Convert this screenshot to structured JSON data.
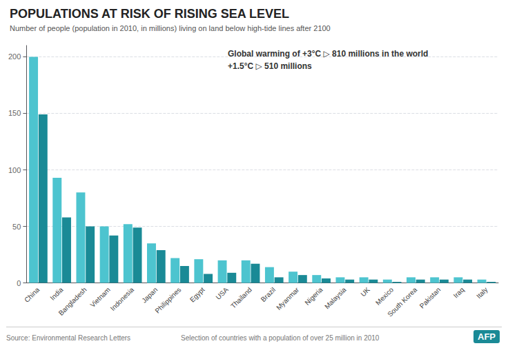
{
  "chart_data": {
    "type": "bar",
    "title": "POPULATIONS AT RISK OF RISING SEA LEVEL",
    "subtitle": "Number of people (population in 2010, in millions) living on land below high-tide lines after 2100",
    "categories": [
      "China",
      "India",
      "Bangladesh",
      "Vietnam",
      "Indonesia",
      "Japan",
      "Philippines",
      "Egypt",
      "USA",
      "Thailand",
      "Brazil",
      "Myanmar",
      "Nigeria",
      "Malaysia",
      "UK",
      "Mexico",
      "South Korea",
      "Pakistan",
      "Iraq",
      "Italy"
    ],
    "series": [
      {
        "name": "+3°C",
        "color": "#4DC4CF",
        "values": [
          200,
          93,
          80,
          50,
          52,
          35,
          22,
          21,
          20,
          20,
          14,
          10,
          7,
          5,
          5,
          3,
          5,
          5,
          5,
          3
        ]
      },
      {
        "name": "+1.5°C",
        "color": "#1A8A96",
        "values": [
          149,
          58,
          50,
          42,
          49,
          29,
          15,
          8,
          9,
          17,
          5,
          7,
          4,
          3,
          3,
          1,
          3,
          3,
          3,
          1
        ]
      }
    ],
    "ylim": [
      0,
      210
    ],
    "yticks": [
      0,
      50,
      100,
      150,
      200
    ],
    "grid": true,
    "annotations": [
      "Global warming of +3°C ▷ 810 millions in the world",
      "+1.5°C ▷ 510 millions"
    ],
    "source": "Source: Environmental Research Letters",
    "note": "Selection of countries with a population of over 25 million in 2010",
    "brand": "AFP"
  }
}
